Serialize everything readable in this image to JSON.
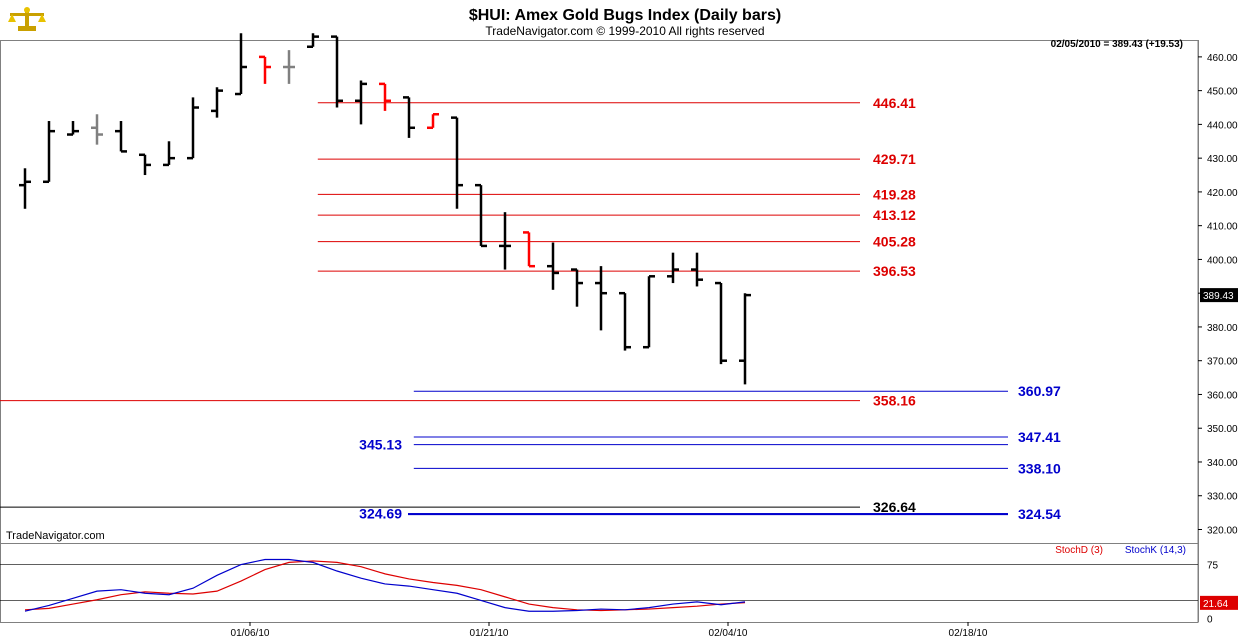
{
  "header": {
    "title": "$HUI:  Amex Gold Bugs Index  (Daily bars)",
    "copyright": "TradeNavigator.com © 1999-2010 All rights reserved",
    "readout": "02/05/2010 = 389.43 (+19.53)",
    "watermark": "TradeNavigator.com",
    "logo_icon": "scales-icon"
  },
  "colors": {
    "up_bar": "#000000",
    "down_bar": "#ff0000",
    "neutral_bar": "#808080",
    "red_level": "#dd0000",
    "blue_level": "#0000cc",
    "stoch_d": "#dd0000",
    "stoch_k": "#0000cc"
  },
  "chart_data": [
    {
      "type": "ohlc",
      "ylim": [
        316,
        465
      ],
      "y_ticks": [
        "460.00",
        "450.00",
        "440.00",
        "430.00",
        "420.00",
        "410.00",
        "400.00",
        "390.00",
        "380.00",
        "370.00",
        "360.00",
        "350.00",
        "340.00",
        "330.00",
        "320.00"
      ],
      "y_tick_values": [
        460,
        450,
        440,
        430,
        420,
        410,
        400,
        390,
        380,
        370,
        360,
        350,
        340,
        330,
        320
      ],
      "last_value_label": "389.43",
      "last_value": 389.43,
      "x_labels": [
        "01/06/10",
        "01/21/10",
        "02/04/10",
        "02/18/10"
      ],
      "bars": [
        {
          "o": 422,
          "h": 427,
          "l": 415,
          "c": 423,
          "color": "black"
        },
        {
          "o": 423,
          "h": 441,
          "l": 423,
          "c": 438,
          "color": "black"
        },
        {
          "o": 437,
          "h": 441,
          "l": 437,
          "c": 438,
          "color": "black"
        },
        {
          "o": 439,
          "h": 443,
          "l": 434,
          "c": 437,
          "color": "gray"
        },
        {
          "o": 438,
          "h": 441,
          "l": 432,
          "c": 432,
          "color": "black"
        },
        {
          "o": 431,
          "h": 431,
          "l": 425,
          "c": 428,
          "color": "black"
        },
        {
          "o": 428,
          "h": 435,
          "l": 428,
          "c": 430,
          "color": "black"
        },
        {
          "o": 430,
          "h": 448,
          "l": 430,
          "c": 445,
          "color": "black"
        },
        {
          "o": 444,
          "h": 451,
          "l": 442,
          "c": 450,
          "color": "black"
        },
        {
          "o": 449,
          "h": 467,
          "l": 449,
          "c": 457,
          "color": "black"
        },
        {
          "o": 460,
          "h": 460,
          "l": 452,
          "c": 457,
          "color": "red"
        },
        {
          "o": 457,
          "h": 462,
          "l": 452,
          "c": 457,
          "color": "gray"
        },
        {
          "o": 463,
          "h": 467,
          "l": 463,
          "c": 466,
          "color": "black"
        },
        {
          "o": 466,
          "h": 466,
          "l": 445,
          "c": 447,
          "color": "black"
        },
        {
          "o": 447,
          "h": 453,
          "l": 440,
          "c": 452,
          "color": "black"
        },
        {
          "o": 452,
          "h": 452,
          "l": 444,
          "c": 447,
          "color": "red"
        },
        {
          "o": 448,
          "h": 448,
          "l": 436,
          "c": 439,
          "color": "black"
        },
        {
          "o": 439,
          "h": 443,
          "l": 439,
          "c": 443,
          "color": "red"
        },
        {
          "o": 442,
          "h": 442,
          "l": 415,
          "c": 422,
          "color": "black"
        },
        {
          "o": 422,
          "h": 422,
          "l": 404,
          "c": 404,
          "color": "black"
        },
        {
          "o": 404,
          "h": 414,
          "l": 397,
          "c": 404,
          "color": "black"
        },
        {
          "o": 408,
          "h": 408,
          "l": 398,
          "c": 398,
          "color": "red"
        },
        {
          "o": 398,
          "h": 405,
          "l": 391,
          "c": 396,
          "color": "black"
        },
        {
          "o": 397,
          "h": 397,
          "l": 386,
          "c": 393,
          "color": "black"
        },
        {
          "o": 393,
          "h": 398,
          "l": 379,
          "c": 390,
          "color": "black"
        },
        {
          "o": 390,
          "h": 390,
          "l": 373,
          "c": 374,
          "color": "black"
        },
        {
          "o": 374,
          "h": 395,
          "l": 374,
          "c": 395,
          "color": "black"
        },
        {
          "o": 395,
          "h": 402,
          "l": 393,
          "c": 397,
          "color": "black"
        },
        {
          "o": 397,
          "h": 402,
          "l": 392,
          "c": 394,
          "color": "black"
        },
        {
          "o": 393,
          "h": 393,
          "l": 369,
          "c": 370,
          "color": "black"
        },
        {
          "o": 370,
          "h": 390,
          "l": 363,
          "c": 389.43,
          "color": "black"
        }
      ],
      "levels": [
        {
          "value": 446.41,
          "label": "446.41",
          "color": "red",
          "start_bar": 12.2
        },
        {
          "value": 429.71,
          "label": "429.71",
          "color": "red",
          "start_bar": 12.2
        },
        {
          "value": 419.28,
          "label": "419.28",
          "color": "red",
          "start_bar": 12.2
        },
        {
          "value": 413.12,
          "label": "413.12",
          "color": "red",
          "start_bar": 12.2
        },
        {
          "value": 405.28,
          "label": "405.28",
          "color": "red",
          "start_bar": 12.2
        },
        {
          "value": 396.53,
          "label": "396.53",
          "color": "red",
          "start_bar": 12.2
        },
        {
          "value": 358.16,
          "label": "358.16",
          "color": "red",
          "start_bar": -1
        },
        {
          "value": 360.97,
          "label": "360.97",
          "color": "blue",
          "start_bar": 16.2
        },
        {
          "value": 347.41,
          "label": "347.41",
          "color": "blue",
          "start_bar": 16.2
        },
        {
          "value": 345.13,
          "label": "345.13",
          "color": "blue",
          "start_bar": 16.2
        },
        {
          "value": 338.1,
          "label": "338.10",
          "color": "blue",
          "start_bar": 16.2
        },
        {
          "value": 326.64,
          "label": "326.64",
          "color": "black",
          "start_bar": -1
        },
        {
          "value": 324.54,
          "label": "324.54",
          "color": "blue",
          "start_bar": 16.2
        },
        {
          "value": 324.69,
          "label": "324.69",
          "color": "blue",
          "start_bar": 16.2
        }
      ]
    },
    {
      "type": "line",
      "ylim": [
        -5,
        105
      ],
      "y_ticks": [
        "75",
        "0"
      ],
      "y_tick_values": [
        75,
        0
      ],
      "guides": [
        75,
        25
      ],
      "last_value_label": "21.64",
      "last_value": 21.64,
      "series": [
        {
          "name": "StochD (3)",
          "color": "red",
          "values": [
            12,
            14,
            20,
            26,
            33,
            37,
            35,
            34,
            38,
            52,
            68,
            78,
            80,
            78,
            72,
            62,
            55,
            50,
            46,
            40,
            30,
            20,
            15,
            12,
            11,
            12,
            13,
            15,
            17,
            20,
            22
          ]
        },
        {
          "name": "StochK (14,3)",
          "color": "blue",
          "values": [
            10,
            18,
            28,
            38,
            40,
            35,
            33,
            42,
            60,
            75,
            82,
            82,
            78,
            66,
            56,
            48,
            45,
            40,
            35,
            25,
            15,
            10,
            10,
            11,
            13,
            12,
            15,
            20,
            23,
            19,
            23
          ]
        }
      ]
    }
  ]
}
